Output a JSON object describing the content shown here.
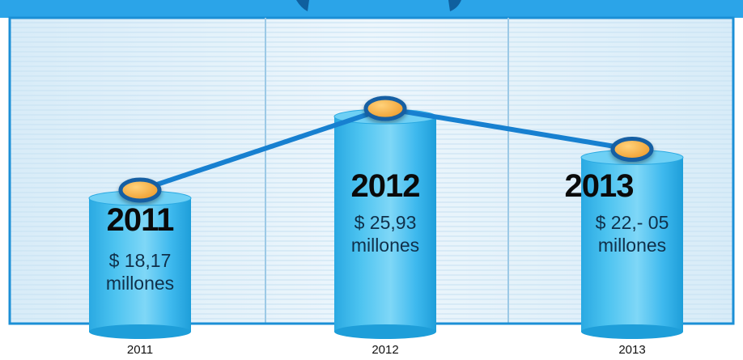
{
  "colors": {
    "header": "#2ba4e8",
    "frame": "#1b8fd6",
    "panel_light": "#e6f3fb",
    "line": "#1780d0",
    "marker_fill": "#f5a638",
    "marker_ring": "#125fa3",
    "cylinder_top": "#5ec9f2",
    "cylinder_body": "#33b6ec"
  },
  "chart_data": {
    "type": "bar",
    "overlay": "line",
    "title": "",
    "xlabel": "",
    "ylabel": "",
    "categories": [
      "2011",
      "2012",
      "2013"
    ],
    "values": [
      18.17,
      25.93,
      22.05
    ],
    "ylim": [
      0,
      30
    ],
    "grid": true,
    "bar_labels": [
      {
        "year": "2011",
        "amount": "$ 18,17",
        "unit": "millones"
      },
      {
        "year": "2012",
        "amount": "$ 25,93",
        "unit": "millones"
      },
      {
        "year": "2013",
        "amount": "$ 22,- 05",
        "unit": "millones"
      }
    ]
  }
}
